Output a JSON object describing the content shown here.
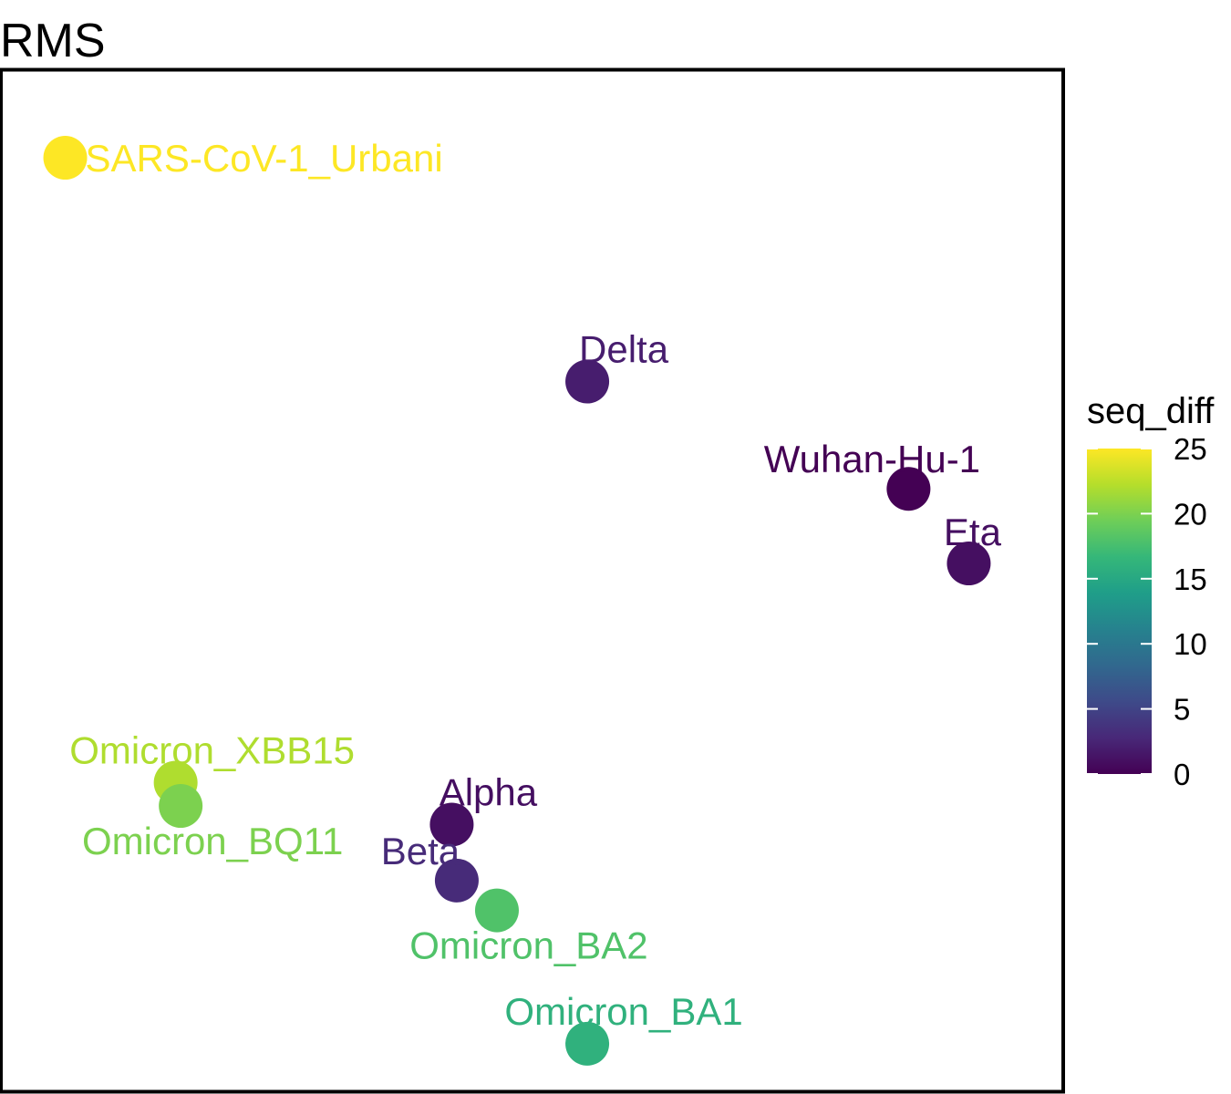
{
  "chart_data": {
    "type": "scatter",
    "title": "RMS",
    "xlabel": "",
    "ylabel": "",
    "grid": false,
    "legend": {
      "title": "seq_diff",
      "position": "right",
      "min": 0,
      "max": 25,
      "ticks": [
        0,
        5,
        10,
        15,
        20,
        25
      ],
      "colormap": [
        "#440154",
        "#482878",
        "#3e4a89",
        "#31688e",
        "#26828e",
        "#1f9e89",
        "#35b779",
        "#6ece58",
        "#b5de2b",
        "#fde725"
      ]
    },
    "points": [
      {
        "label": "SARS-CoV-1_Urbani",
        "seq_diff": 25,
        "x": 0.35,
        "y": 9.55,
        "label_pos": "right"
      },
      {
        "label": "Delta",
        "seq_diff": 2,
        "x": 5.55,
        "y": 7.15,
        "label_pos": "above-right"
      },
      {
        "label": "Wuhan-Hu-1",
        "seq_diff": 0,
        "x": 8.75,
        "y": 6.0,
        "label_pos": "above-left"
      },
      {
        "label": "Eta",
        "seq_diff": 1,
        "x": 9.35,
        "y": 5.2,
        "label_pos": "above"
      },
      {
        "label": "Omicron_XBB15",
        "seq_diff": 22,
        "x": 1.45,
        "y": 2.85,
        "label_pos": "above-right"
      },
      {
        "label": "Omicron_BQ11",
        "seq_diff": 20,
        "x": 1.5,
        "y": 2.6,
        "label_pos": "below"
      },
      {
        "label": "Alpha",
        "seq_diff": 1,
        "x": 4.2,
        "y": 2.4,
        "label_pos": "above-right"
      },
      {
        "label": "Beta",
        "seq_diff": 3,
        "x": 4.25,
        "y": 1.8,
        "label_pos": "above-left"
      },
      {
        "label": "Omicron_BA2",
        "seq_diff": 18,
        "x": 4.65,
        "y": 1.48,
        "label_pos": "below"
      },
      {
        "label": "Omicron_BA1",
        "seq_diff": 16,
        "x": 5.55,
        "y": 0.05,
        "label_pos": "above-right"
      }
    ],
    "xlim": [
      0,
      10
    ],
    "ylim": [
      0,
      10
    ]
  }
}
